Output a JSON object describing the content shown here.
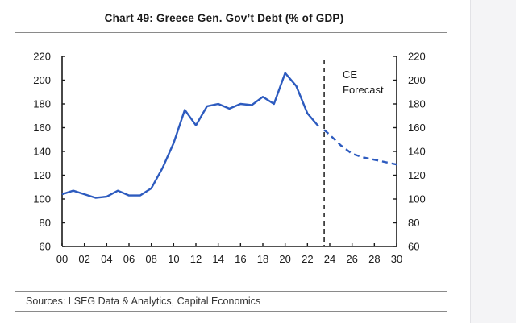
{
  "title": "Chart 49: Greece Gen. Gov’t Debt (% of GDP)",
  "source": "Sources: LSEG Data & Analytics, Capital Economics",
  "colors": {
    "series": "#2d5bbf",
    "axis": "#1a1a1a"
  },
  "chart_data": {
    "type": "line",
    "title": "Chart 49: Greece Gen. Gov’t Debt (% of GDP)",
    "xlabel": "",
    "ylabel": "",
    "xlim": [
      2000,
      2030
    ],
    "ylim": [
      60,
      220
    ],
    "x_ticks": [
      0,
      2,
      4,
      6,
      8,
      10,
      12,
      14,
      16,
      18,
      20,
      22,
      24,
      26,
      28,
      30
    ],
    "x_tick_labels": [
      "00",
      "02",
      "04",
      "06",
      "08",
      "10",
      "12",
      "14",
      "16",
      "18",
      "20",
      "22",
      "24",
      "26",
      "28",
      "30"
    ],
    "y_ticks": [
      60,
      80,
      100,
      120,
      140,
      160,
      180,
      200,
      220
    ],
    "y_tick_labels": [
      "60",
      "80",
      "100",
      "120",
      "140",
      "160",
      "180",
      "200",
      "220"
    ],
    "dual_y_axis": true,
    "grid": false,
    "series": [
      {
        "style": "solid",
        "x": [
          2000,
          2001,
          2002,
          2003,
          2004,
          2005,
          2006,
          2007,
          2008,
          2009,
          2010,
          2011,
          2012,
          2013,
          2014,
          2015,
          2016,
          2017,
          2018,
          2019,
          2020,
          2021,
          2022,
          2023
        ],
        "values": [
          104,
          107,
          104,
          101,
          102,
          107,
          103,
          103,
          109,
          126,
          147,
          175,
          162,
          178,
          180,
          176,
          180,
          179,
          186,
          180,
          206,
          195,
          172,
          161
        ]
      },
      {
        "style": "dashed",
        "x": [
          2023.5,
          2024,
          2025,
          2026,
          2027,
          2028,
          2029,
          2030
        ],
        "values": [
          158,
          154,
          145,
          138,
          135,
          133,
          131,
          129
        ]
      }
    ],
    "annotations": [
      {
        "text_lines": [
          "CE",
          "Forecast"
        ],
        "marker": "vertical dashed line",
        "x": 2023.5
      }
    ]
  }
}
